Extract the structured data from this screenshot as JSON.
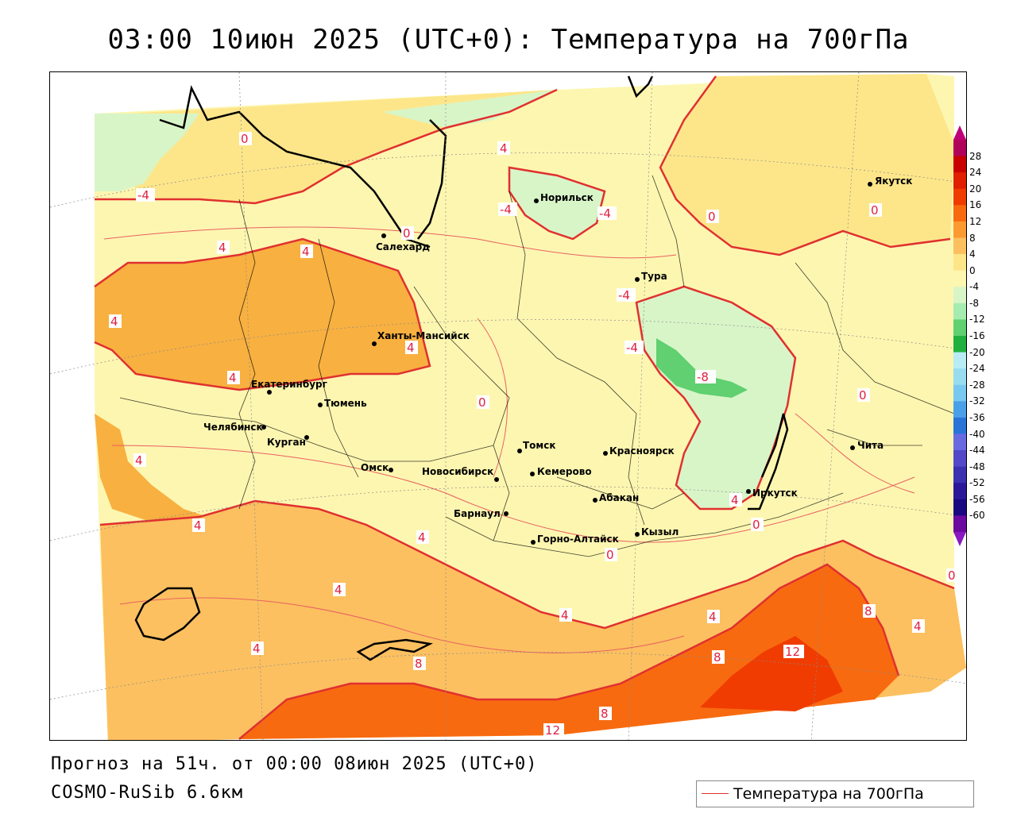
{
  "title": "03:00 10июн 2025 (UTC+0): Температура на 700гПа",
  "footer": {
    "forecast_line": "Прогноз на 51ч. от 00:00 08июн 2025 (UTC+0)",
    "model_line": "COSMO-RuSib 6.6км"
  },
  "legend": {
    "entry_label": "Температура на 700гПа",
    "line_color": "#e03030"
  },
  "colorbar": {
    "labels": [
      "28",
      "24",
      "20",
      "16",
      "12",
      "8",
      "4",
      "0",
      "-4",
      "-8",
      "-12",
      "-16",
      "-20",
      "-24",
      "-28",
      "-32",
      "-36",
      "-40",
      "-44",
      "-48",
      "-52",
      "-56",
      "-60"
    ],
    "colors": [
      "#b0005a",
      "#c80000",
      "#e01e00",
      "#f03c00",
      "#f86a10",
      "#fb9a30",
      "#fcc060",
      "#fde68a",
      "#fdf6b0",
      "#d8f5c8",
      "#a6ecb0",
      "#60d070",
      "#20b040",
      "#b8ecf4",
      "#98dcf0",
      "#78c8f0",
      "#4aa0e8",
      "#2a74d8",
      "#6a6ae0",
      "#5248c8",
      "#3a30b0",
      "#2a1898",
      "#1a0880",
      "#6a0aa0"
    ]
  },
  "cities": [
    {
      "name": "Якутск"
    },
    {
      "name": "Норильск"
    },
    {
      "name": "Салехард"
    },
    {
      "name": "Тура"
    },
    {
      "name": "Ханты-Мансийск"
    },
    {
      "name": "Екатеринбург"
    },
    {
      "name": "Тюмень"
    },
    {
      "name": "Челябинск"
    },
    {
      "name": "Курган"
    },
    {
      "name": "Омск"
    },
    {
      "name": "Новосибирск"
    },
    {
      "name": "Томск"
    },
    {
      "name": "Кемерово"
    },
    {
      "name": "Красноярск"
    },
    {
      "name": "Абакан"
    },
    {
      "name": "Барнаул"
    },
    {
      "name": "Горно-Алтайск"
    },
    {
      "name": "Кызыл"
    },
    {
      "name": "Иркутск"
    },
    {
      "name": "Чита"
    }
  ],
  "contour_labels": [
    "-4",
    "4",
    "0",
    "-4",
    "-4",
    "0",
    "0",
    "4",
    "4",
    "-4",
    "-4",
    "-8",
    "4",
    "0",
    "4",
    "4",
    "0",
    "0",
    "4",
    "4",
    "4",
    "4",
    "4",
    "4",
    "0",
    "0",
    "4",
    "4",
    "8",
    "8",
    "12",
    "8",
    "12",
    "8",
    "4",
    "0"
  ]
}
